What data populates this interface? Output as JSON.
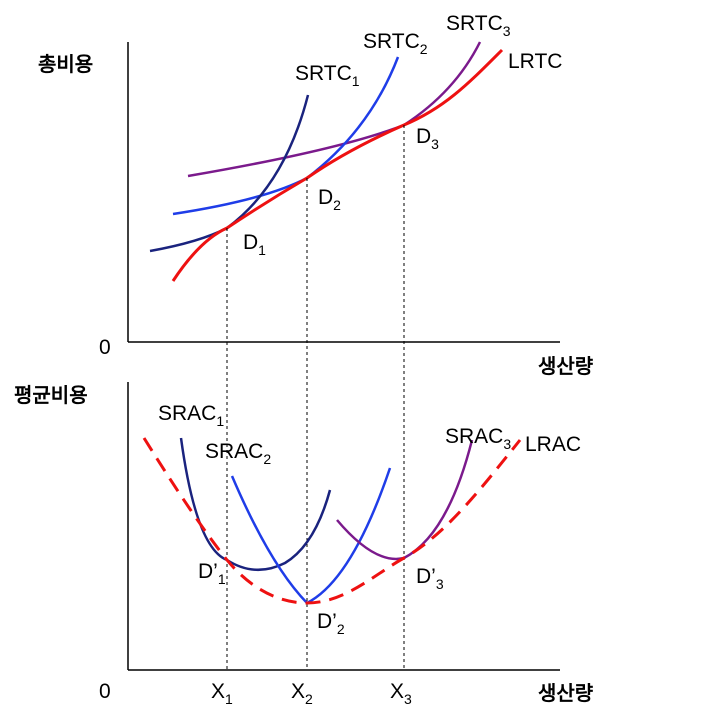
{
  "top_panel": {
    "y_axis_label": "총비용",
    "x_axis_label": "생산량",
    "origin_label": "0",
    "curves": [
      {
        "key": "srtc1",
        "base": "SRTC",
        "sub": "1",
        "color": "#1a237e"
      },
      {
        "key": "srtc2",
        "base": "SRTC",
        "sub": "2",
        "color": "#1f3de8"
      },
      {
        "key": "srtc3",
        "base": "SRTC",
        "sub": "3",
        "color": "#7b1a8c"
      },
      {
        "key": "lrtc",
        "base": "LRTC",
        "sub": "",
        "color": "#ee1111"
      }
    ],
    "points": [
      {
        "base": "D",
        "sub": "1"
      },
      {
        "base": "D",
        "sub": "2"
      },
      {
        "base": "D",
        "sub": "3"
      }
    ]
  },
  "bottom_panel": {
    "y_axis_label": "평균비용",
    "x_axis_label": "생산량",
    "origin_label": "0",
    "curves": [
      {
        "key": "srac1",
        "base": "SRAC",
        "sub": "1",
        "color": "#1a237e"
      },
      {
        "key": "srac2",
        "base": "SRAC",
        "sub": "2",
        "color": "#1f3de8"
      },
      {
        "key": "srac3",
        "base": "SRAC",
        "sub": "3",
        "color": "#7b1a8c"
      },
      {
        "key": "lrac",
        "base": "LRAC",
        "sub": "",
        "color": "#ee1111",
        "style": "dashed"
      }
    ],
    "points": [
      {
        "base": "D’",
        "sub": "1"
      },
      {
        "base": "D’",
        "sub": "2"
      },
      {
        "base": "D’",
        "sub": "3"
      }
    ],
    "x_ticks": [
      {
        "base": "X",
        "sub": "1"
      },
      {
        "base": "X",
        "sub": "2"
      },
      {
        "base": "X",
        "sub": "3"
      }
    ]
  }
}
